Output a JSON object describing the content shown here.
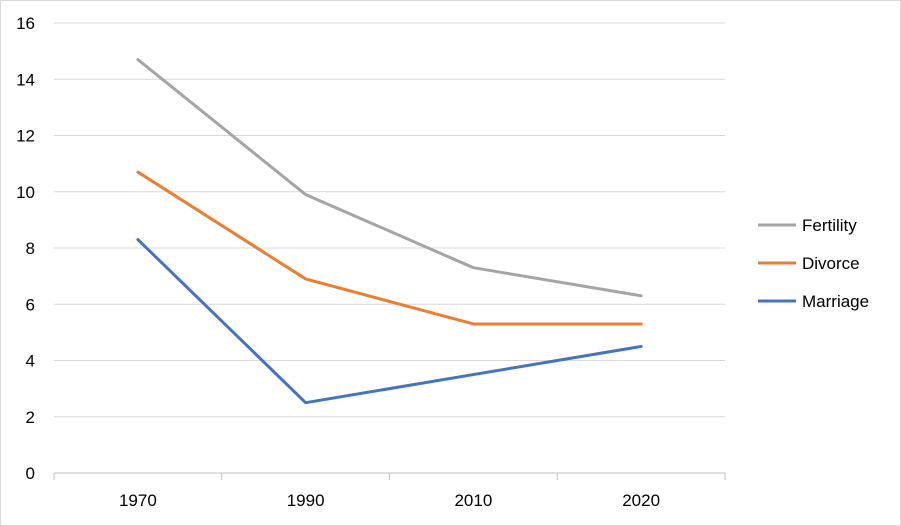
{
  "chart_data": {
    "type": "line",
    "categories": [
      "1970",
      "1990",
      "2010",
      "2020"
    ],
    "series": [
      {
        "name": "Fertility",
        "values": [
          14.7,
          9.9,
          7.3,
          6.3
        ],
        "color": "#a5a5a5"
      },
      {
        "name": "Divorce",
        "values": [
          10.7,
          6.9,
          5.3,
          5.3
        ],
        "color": "#ed7d31"
      },
      {
        "name": "Marriage",
        "values": [
          8.3,
          2.5,
          3.5,
          4.5
        ],
        "color": "#4472c4"
      }
    ],
    "ylim": [
      0,
      16
    ],
    "yticks": [
      0,
      2,
      4,
      6,
      8,
      10,
      12,
      14,
      16
    ],
    "grid": true,
    "legend_position": "right",
    "grid_color": "#d9d9d9",
    "axis_color": "#bfbfbf"
  }
}
